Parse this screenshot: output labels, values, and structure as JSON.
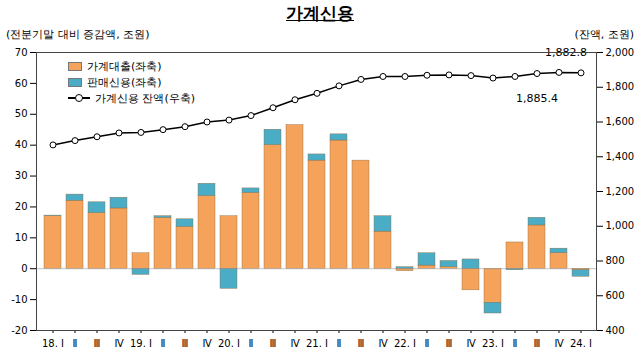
{
  "chart_data": {
    "type": "bar",
    "title": "가계신용",
    "y_label": "(전분기말 대비 증감액, 조원)",
    "y2_label": "(잔액, 조원)",
    "stacked": true,
    "legend": "top-left",
    "categories": [
      "18. Ⅰ",
      "Ⅱ",
      "Ⅲ",
      "Ⅳ",
      "19. Ⅰ",
      "Ⅱ",
      "Ⅲ",
      "Ⅳ",
      "20. Ⅰ",
      "Ⅱ",
      "Ⅲ",
      "Ⅳ",
      "21. Ⅰ",
      "Ⅱ",
      "Ⅲ",
      "Ⅳ",
      "22. Ⅰ",
      "Ⅱ",
      "Ⅲ",
      "Ⅳ",
      "23. Ⅰ",
      "Ⅱ",
      "Ⅲ",
      "Ⅳ",
      "24. Ⅰ"
    ],
    "series": [
      {
        "name": "가계대출(좌축)",
        "type": "bar",
        "color": "#F5A35A",
        "values": [
          17,
          22,
          18,
          19.5,
          5,
          16.5,
          13.5,
          23.5,
          17,
          24.5,
          40,
          46.5,
          35,
          41.5,
          35,
          12,
          -0.8,
          1,
          0.5,
          -7,
          -11,
          8.5,
          14,
          5,
          -0.5
        ]
      },
      {
        "name": "판매신용(좌축)",
        "type": "bar",
        "color": "#4BACC6",
        "values": [
          0.2,
          2,
          3.5,
          3.5,
          -2,
          0.5,
          2.5,
          4,
          -6.5,
          1.5,
          5,
          0,
          2,
          2,
          0,
          5,
          0.5,
          4,
          2,
          3,
          -3.5,
          -0.5,
          2.5,
          1.5,
          -2.1
        ]
      },
      {
        "name": "가계신용 잔액(우축)",
        "type": "line",
        "axis": "y2",
        "color": "#000000",
        "marker": "circle",
        "values": [
          1468,
          1493,
          1515,
          1537,
          1540,
          1556,
          1573,
          1600,
          1611,
          1637,
          1682,
          1728,
          1765,
          1808,
          1845,
          1862,
          1862,
          1869,
          1871,
          1867,
          1853,
          1862,
          1879,
          1885.4,
          1882.8
        ],
        "value_labels": [
          null,
          null,
          null,
          null,
          null,
          null,
          null,
          null,
          null,
          null,
          null,
          null,
          null,
          null,
          null,
          null,
          null,
          null,
          null,
          null,
          null,
          null,
          null,
          "1,885.4",
          "1,882.8"
        ]
      }
    ],
    "ylim": [
      -20,
      70
    ],
    "yticks": [
      -20,
      -10,
      0,
      10,
      20,
      30,
      40,
      50,
      60,
      70
    ],
    "y2lim": [
      400,
      2000
    ],
    "y2ticks": [
      400,
      600,
      800,
      {
        "value": 1000,
        "label": "1,000"
      },
      {
        "value": 1200,
        "label": "1,200"
      },
      {
        "value": 1400,
        "label": "1,400"
      },
      {
        "value": 1600,
        "label": "1,600"
      },
      {
        "value": 1800,
        "label": "1,800"
      },
      {
        "value": 2000,
        "label": "2,000"
      }
    ],
    "grid": false
  }
}
